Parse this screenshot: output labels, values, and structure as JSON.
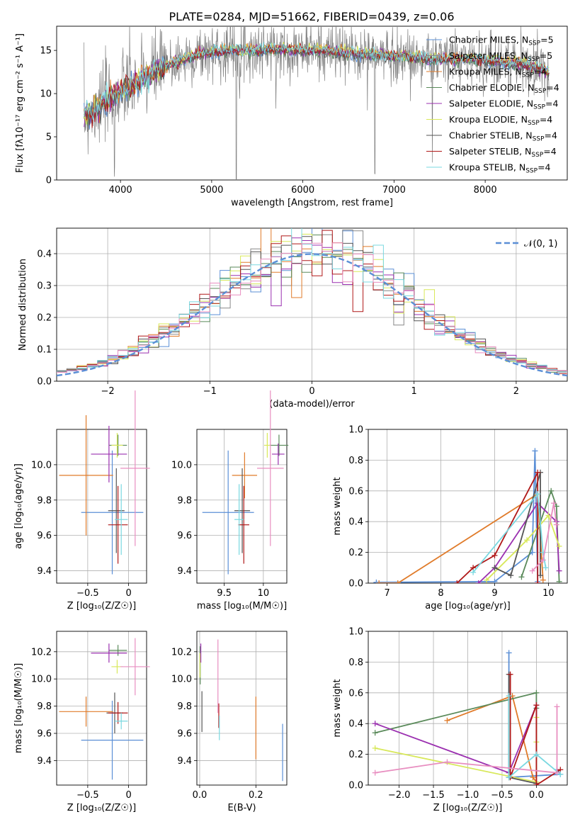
{
  "figure": {
    "title": "PLATE=0284, MJD=51662, FIBERID=0439, z=0.06"
  },
  "colors": {
    "Chabrier MILES": "#5b8fd6",
    "Salpeter MILES": "#888888",
    "Kroupa MILES": "#e07b2a",
    "Chabrier ELODIE": "#5a8a5a",
    "Salpeter ELODIE": "#9b30b0",
    "Kroupa ELODIE": "#d8e85a",
    "Chabrier STELIB": "#555555",
    "Salpeter STELIB": "#b01818",
    "Kroupa STELIB": "#7ad8e0",
    "Salpeter ELODIE pink": "#e88ec0",
    "data": "#808080",
    "gaussian": "#5b8fd6"
  },
  "chart_data": [
    {
      "id": "spectrum",
      "type": "line",
      "xlabel": "wavelength [Angstrom, rest frame]",
      "ylabel": "Flux [f$_\\lambda$10$^{-17}$ erg cm$^{-2}$ s$^{-1}$ A$^{-1}$]",
      "ylabel_display": "Flux [fλ10⁻¹⁷ erg cm⁻² s⁻¹ A⁻¹]",
      "xlim": [
        3300,
        8900
      ],
      "ylim": [
        0,
        17.8
      ],
      "xticks": [
        4000,
        5000,
        6000,
        7000,
        8000
      ],
      "yticks": [
        0,
        5,
        10,
        15
      ],
      "legend_position": "right",
      "legend": [
        {
          "name": "Chabrier MILES, N$_{SSP}$=5",
          "display": "Chabrier MILES, N",
          "sub": "SSP",
          "tail": "=5",
          "color": "#5b8fd6"
        },
        {
          "name": "Salpeter MILES, N$_{SSP}$=5",
          "display": "Salpeter MILES, N",
          "sub": "SSP",
          "tail": "=5",
          "color": "#888888"
        },
        {
          "name": "Kroupa MILES, N$_{SSP}$=4",
          "display": "Kroupa MILES, N",
          "sub": "SSP",
          "tail": "=4",
          "color": "#e07b2a"
        },
        {
          "name": "Chabrier ELODIE, N$_{SSP}$=4",
          "display": "Chabrier ELODIE, N",
          "sub": "SSP",
          "tail": "=4",
          "color": "#5a8a5a"
        },
        {
          "name": "Salpeter ELODIE, N$_{SSP}$=4",
          "display": "Salpeter ELODIE, N",
          "sub": "SSP",
          "tail": "=4",
          "color": "#9b30b0"
        },
        {
          "name": "Kroupa ELODIE, N$_{SSP}$=4",
          "display": "Kroupa ELODIE, N",
          "sub": "SSP",
          "tail": "=4",
          "color": "#d8e85a"
        },
        {
          "name": "Chabrier STELIB, N$_{SSP}$=4",
          "display": "Chabrier STELIB, N",
          "sub": "SSP",
          "tail": "=4",
          "color": "#555555"
        },
        {
          "name": "Salpeter STELIB, N$_{SSP}$=4",
          "display": "Salpeter STELIB, N",
          "sub": "SSP",
          "tail": "=4",
          "color": "#b01818"
        },
        {
          "name": "Kroupa STELIB, N$_{SSP}$=4",
          "display": "Kroupa STELIB, N",
          "sub": "SSP",
          "tail": "=4",
          "color": "#7ad8e0"
        }
      ],
      "continuum": {
        "x": [
          3600,
          3700,
          3800,
          3900,
          4000,
          4100,
          4200,
          4300,
          4400,
          4500,
          4600,
          4700,
          4800,
          4900,
          5000,
          5200,
          5400,
          5600,
          5800,
          6000,
          6200,
          6400,
          6600,
          6800,
          7000,
          7200,
          7400,
          7600,
          7800,
          8000,
          8200,
          8400,
          8600,
          8700
        ],
        "y": [
          7.2,
          8.0,
          8.8,
          9.5,
          10.2,
          10.8,
          11.3,
          12.0,
          12.7,
          13.2,
          13.6,
          14.0,
          14.3,
          14.6,
          14.8,
          15.0,
          15.0,
          15.1,
          15.1,
          15.0,
          15.0,
          14.8,
          14.6,
          14.5,
          14.4,
          14.2,
          14.0,
          14.0,
          14.0,
          13.8,
          13.6,
          13.4,
          12.9,
          12.5
        ]
      },
      "data_noise": 1.6,
      "absorption_lines": [
        {
          "x": 3934,
          "y": 0
        },
        {
          "x": 5270,
          "y": 0
        },
        {
          "x": 6790,
          "y": 0
        },
        {
          "x": 7420,
          "y": 0
        }
      ]
    },
    {
      "id": "residuals",
      "type": "line",
      "xlabel": "(data-model)/error",
      "ylabel": "Normed distribution",
      "xlim": [
        -2.5,
        2.5
      ],
      "ylim": [
        0,
        0.48
      ],
      "xticks": [
        -2,
        -1,
        0,
        1,
        2
      ],
      "yticks": [
        0.0,
        0.1,
        0.2,
        0.3,
        0.4
      ],
      "legend_position": "top-right",
      "legend": [
        {
          "name": "$\\mathcal{N}(0,1)$",
          "display": "𝒩(0, 1)",
          "color": "#5b8fd6"
        }
      ],
      "bin_width": 0.1,
      "grid": true
    },
    {
      "id": "age-vs-Z",
      "type": "scatter",
      "xlabel": "Z [log$_{10}$(Z/Z$_\\odot$)]",
      "xlabel_display": "Z [log₁₀(Z/Z☉)]",
      "ylabel": "age  [log$_{10}$(age/yr)]",
      "ylabel_display": "age  [log₁₀(age/yr)]",
      "xlim": [
        -0.88,
        0.22
      ],
      "ylim": [
        9.33,
        10.2
      ],
      "xticks": [
        -0.5,
        0.0
      ],
      "yticks": [
        9.4,
        9.6,
        9.8,
        10.0
      ],
      "points": [
        {
          "model": "Chabrier MILES",
          "x": -0.2,
          "y": 9.73,
          "xerr": 0.38,
          "yerr": 0.35
        },
        {
          "model": "Kroupa MILES",
          "x": -0.52,
          "y": 9.94,
          "xerr": 0.33,
          "yerr": 0.34
        },
        {
          "model": "Chabrier ELODIE",
          "x": -0.13,
          "y": 10.11,
          "xerr": 0.11,
          "yerr": 0.06
        },
        {
          "model": "Salpeter ELODIE",
          "x": -0.24,
          "y": 10.06,
          "xerr": 0.22,
          "yerr": 0.16
        },
        {
          "model": "Kroupa ELODIE",
          "x": -0.14,
          "y": 10.11,
          "xerr": 0.07,
          "yerr": 0.07
        },
        {
          "model": "Chabrier STELIB",
          "x": -0.15,
          "y": 9.74,
          "xerr": 0.1,
          "yerr": 0.24
        },
        {
          "model": "Salpeter STELIB",
          "x": -0.13,
          "y": 9.66,
          "xerr": 0.12,
          "yerr": 0.22
        },
        {
          "model": "Kroupa STELIB",
          "x": -0.09,
          "y": 9.69,
          "xerr": 0.08,
          "yerr": 0.2
        },
        {
          "model": "Salpeter ELODIE pink",
          "x": 0.08,
          "y": 9.98,
          "xerr": 0.18,
          "yerr": 0.44
        }
      ]
    },
    {
      "id": "age-vs-mass",
      "type": "scatter",
      "xlabel": "mass [log$_{10}$(M/M$_\\odot$)]",
      "xlabel_display": "mass [log₁₀(M/M☉)]",
      "ylabel": "",
      "xlim": [
        9.15,
        10.3
      ],
      "ylim": [
        9.33,
        10.2
      ],
      "xticks": [
        9.5,
        10.0
      ],
      "yticks": [
        9.4,
        9.6,
        9.8,
        10.0
      ],
      "points": [
        {
          "model": "Chabrier MILES",
          "x": 9.55,
          "y": 9.73,
          "xerr": 0.33,
          "yerr": 0.35
        },
        {
          "model": "Kroupa MILES",
          "x": 9.76,
          "y": 9.94,
          "xerr": 0.16,
          "yerr": 0.13
        },
        {
          "model": "Chabrier ELODIE",
          "x": 10.2,
          "y": 10.11,
          "xerr": 0.12,
          "yerr": 0.06
        },
        {
          "model": "Salpeter ELODIE",
          "x": 10.19,
          "y": 10.06,
          "xerr": 0.08,
          "yerr": 0.06
        },
        {
          "model": "Kroupa ELODIE",
          "x": 10.05,
          "y": 10.11,
          "xerr": 0.04,
          "yerr": 0.07
        },
        {
          "model": "Chabrier STELIB",
          "x": 9.73,
          "y": 9.74,
          "xerr": 0.1,
          "yerr": 0.24
        },
        {
          "model": "Salpeter STELIB",
          "x": 9.75,
          "y": 9.66,
          "xerr": 0.07,
          "yerr": 0.22
        },
        {
          "model": "Kroupa STELIB",
          "x": 9.69,
          "y": 9.69,
          "xerr": 0.06,
          "yerr": 0.2
        },
        {
          "model": "Salpeter ELODIE pink",
          "x": 10.09,
          "y": 9.98,
          "xerr": 0.17,
          "yerr": 0.44
        }
      ]
    },
    {
      "id": "weight-vs-age",
      "type": "line",
      "xlabel": "age  [log$_{10}$(age/yr)]",
      "xlabel_display": "age  [log₁₀(age/yr)]",
      "ylabel": "mass weight",
      "xlim": [
        6.65,
        10.35
      ],
      "ylim": [
        0,
        1.0
      ],
      "xticks": [
        7,
        8,
        9,
        10
      ],
      "yticks": [
        0.0,
        0.2,
        0.4,
        0.6,
        0.8,
        1.0
      ],
      "series": [
        {
          "model": "Chabrier MILES",
          "x": [
            6.8,
            9.0,
            9.7,
            9.75,
            9.8
          ],
          "y": [
            0.005,
            0.01,
            0.2,
            0.86,
            0.01
          ]
        },
        {
          "model": "Kroupa MILES",
          "x": [
            6.85,
            7.2,
            9.8,
            9.9
          ],
          "y": [
            0.0,
            0.0,
            0.58,
            0.02
          ]
        },
        {
          "model": "Chabrier ELODIE",
          "x": [
            9.5,
            10.05,
            10.15,
            10.2
          ],
          "y": [
            0.04,
            0.6,
            0.5,
            0.01
          ]
        },
        {
          "model": "Salpeter ELODIE",
          "x": [
            8.7,
            9.0,
            9.8,
            10.15,
            10.2
          ],
          "y": [
            0.0,
            0.1,
            0.52,
            0.4,
            0.08
          ]
        },
        {
          "model": "Kroupa ELODIE",
          "x": [
            8.85,
            9.6,
            10.0,
            10.2
          ],
          "y": [
            0.02,
            0.28,
            0.44,
            0.24
          ]
        },
        {
          "model": "Chabrier STELIB",
          "x": [
            9.0,
            9.3,
            9.85,
            9.85
          ],
          "y": [
            0.1,
            0.05,
            0.72,
            0.05
          ]
        },
        {
          "model": "Salpeter STELIB",
          "x": [
            8.3,
            8.6,
            9.0,
            9.8,
            9.8
          ],
          "y": [
            0.0,
            0.1,
            0.18,
            0.72,
            0.0
          ]
        },
        {
          "model": "Kroupa STELIB",
          "x": [
            8.6,
            9.8,
            9.9,
            9.95
          ],
          "y": [
            0.07,
            0.58,
            0.2,
            0.1
          ]
        },
        {
          "model": "Salpeter ELODIE pink",
          "x": [
            9.7,
            9.9,
            10.1,
            10.15
          ],
          "y": [
            0.08,
            0.15,
            0.52,
            0.38
          ]
        }
      ]
    },
    {
      "id": "mass-vs-Z",
      "type": "scatter",
      "xlabel": "Z [log$_{10}$(Z/Z$_\\odot$)]",
      "xlabel_display": "Z [log₁₀(Z/Z☉)]",
      "ylabel": "mass [log$_{10}$(M/M$_\\odot$)]",
      "ylabel_display": "mass [log₁₀(M/M☉)]",
      "xlim": [
        -0.88,
        0.22
      ],
      "ylim": [
        9.22,
        10.35
      ],
      "xticks": [
        -0.5,
        0.0
      ],
      "yticks": [
        9.4,
        9.6,
        9.8,
        10.0,
        10.2
      ],
      "points": [
        {
          "model": "Chabrier MILES",
          "x": -0.2,
          "y": 9.55,
          "xerr": 0.38,
          "yerr": 0.29
        },
        {
          "model": "Kroupa MILES",
          "x": -0.52,
          "y": 9.76,
          "xerr": 0.33,
          "yerr": 0.11
        },
        {
          "model": "Chabrier ELODIE",
          "x": -0.13,
          "y": 10.21,
          "xerr": 0.11,
          "yerr": 0.04
        },
        {
          "model": "Salpeter ELODIE",
          "x": -0.24,
          "y": 10.19,
          "xerr": 0.22,
          "yerr": 0.07
        },
        {
          "model": "Kroupa ELODIE",
          "x": -0.14,
          "y": 10.09,
          "xerr": 0.07,
          "yerr": 0.05
        },
        {
          "model": "Chabrier STELIB",
          "x": -0.17,
          "y": 9.75,
          "xerr": 0.1,
          "yerr": 0.15
        },
        {
          "model": "Salpeter STELIB",
          "x": -0.13,
          "y": 9.75,
          "xerr": 0.12,
          "yerr": 0.08
        },
        {
          "model": "Kroupa STELIB",
          "x": -0.09,
          "y": 9.69,
          "xerr": 0.08,
          "yerr": 0.06
        },
        {
          "model": "Salpeter ELODIE pink",
          "x": 0.08,
          "y": 10.09,
          "xerr": 0.18,
          "yerr": 0.21
        }
      ]
    },
    {
      "id": "mass-vs-EBV",
      "type": "scatter",
      "xlabel": "E(B-V)",
      "ylabel": "",
      "xlim": [
        -0.01,
        0.31
      ],
      "ylim": [
        9.22,
        10.35
      ],
      "xticks": [
        0.0,
        0.2
      ],
      "yticks": [
        9.4,
        9.6,
        9.8,
        10.0,
        10.2
      ],
      "points": [
        {
          "model": "Chabrier MILES",
          "x": 0.295,
          "y": 9.46,
          "yerr": 0.21
        },
        {
          "model": "Kroupa MILES",
          "x": 0.2,
          "y": 9.64,
          "yerr": 0.23
        },
        {
          "model": "Chabrier ELODIE",
          "x": 0.002,
          "y": 10.1,
          "yerr": 0.14
        },
        {
          "model": "Salpeter ELODIE",
          "x": 0.004,
          "y": 10.19,
          "yerr": 0.07
        },
        {
          "model": "Kroupa ELODIE",
          "x": 0.001,
          "y": 10.1,
          "yerr": 0.09
        },
        {
          "model": "Chabrier STELIB",
          "x": 0.008,
          "y": 9.76,
          "yerr": 0.15
        },
        {
          "model": "Salpeter STELIB",
          "x": 0.068,
          "y": 9.73,
          "yerr": 0.09
        },
        {
          "model": "Kroupa STELIB",
          "x": 0.07,
          "y": 9.64,
          "yerr": 0.09
        },
        {
          "model": "Salpeter ELODIE pink",
          "x": 0.065,
          "y": 10.02,
          "yerr": 0.27
        }
      ]
    },
    {
      "id": "weight-vs-Z",
      "type": "line",
      "xlabel": "Z [log$_{10}$(Z/Z$_\\odot$)]",
      "xlabel_display": "Z [log₁₀(Z/Z☉)]",
      "ylabel": "mass weight",
      "xlim": [
        -2.45,
        0.45
      ],
      "ylim": [
        0,
        1.0
      ],
      "xticks": [
        -2.0,
        -1.5,
        -1.0,
        -0.5,
        0.0
      ],
      "yticks": [
        0.0,
        0.2,
        0.4,
        0.6,
        0.8,
        1.0
      ],
      "series": [
        {
          "model": "Chabrier MILES",
          "x": [
            -0.4,
            -0.4,
            0.35,
            0.3
          ],
          "y": [
            0.86,
            0.05,
            0.07,
            0.1
          ]
        },
        {
          "model": "Kroupa MILES",
          "x": [
            -1.3,
            -0.35,
            -0.05,
            0.0
          ],
          "y": [
            0.42,
            0.58,
            0.05,
            0.02
          ]
        },
        {
          "model": "Chabrier ELODIE",
          "x": [
            -2.35,
            0.0,
            0.0,
            0.0
          ],
          "y": [
            0.34,
            0.6,
            0.5,
            0.01
          ]
        },
        {
          "model": "Salpeter ELODIE",
          "x": [
            -2.35,
            -0.4,
            0.0,
            0.0
          ],
          "y": [
            0.4,
            0.08,
            0.52,
            0.0
          ]
        },
        {
          "model": "Kroupa ELODIE",
          "x": [
            -2.35,
            0.0,
            0.0,
            0.0
          ],
          "y": [
            0.24,
            0.02,
            0.44,
            0.28
          ]
        },
        {
          "model": "Chabrier STELIB",
          "x": [
            -0.4,
            -0.4,
            0.0
          ],
          "y": [
            0.72,
            0.05,
            0.01
          ]
        },
        {
          "model": "Salpeter STELIB",
          "x": [
            -0.38,
            -0.38,
            0.0,
            0.0,
            0.35
          ],
          "y": [
            0.72,
            0.05,
            0.52,
            0.0,
            0.1
          ]
        },
        {
          "model": "Kroupa STELIB",
          "x": [
            -0.4,
            -0.4,
            0.0,
            0.35
          ],
          "y": [
            0.58,
            0.05,
            0.2,
            0.07
          ]
        },
        {
          "model": "Salpeter ELODIE pink",
          "x": [
            -2.35,
            -1.3,
            0.3,
            0.3
          ],
          "y": [
            0.08,
            0.15,
            0.08,
            0.51
          ]
        }
      ]
    }
  ]
}
